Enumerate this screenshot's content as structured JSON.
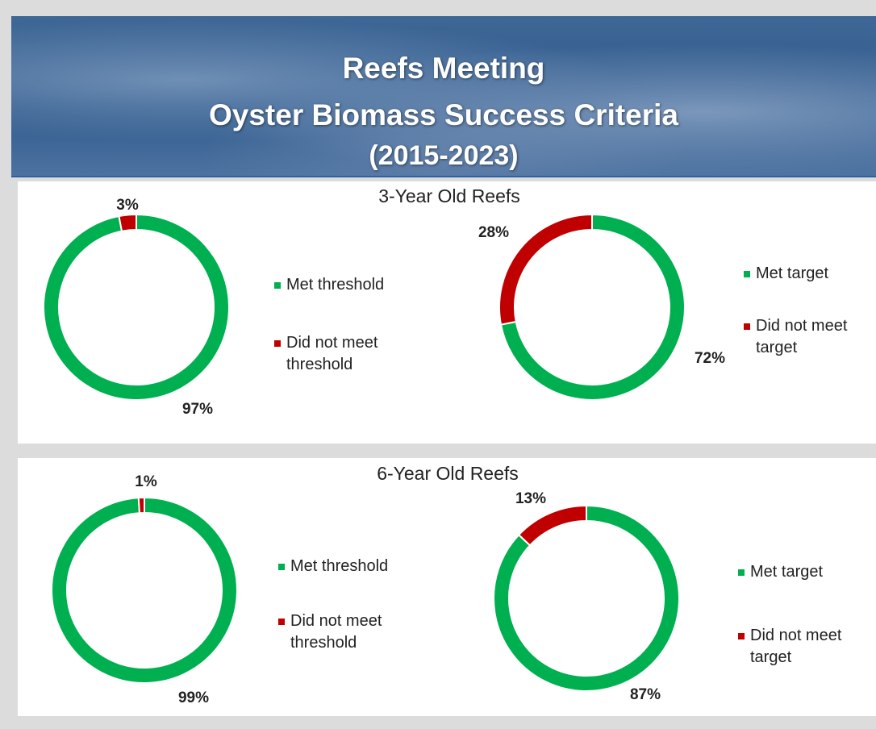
{
  "header": {
    "lines": [
      "Reefs Meeting",
      "Oyster Biomass Success Criteria",
      "(2015-2023)"
    ]
  },
  "panels": [
    {
      "title": "3-Year Old Reefs"
    },
    {
      "title": "6-Year Old Reefs"
    }
  ],
  "chart_data": [
    {
      "type": "donut",
      "categories": [
        "Met threshold",
        "Did not meet threshold"
      ],
      "values": [
        97,
        3
      ],
      "value_labels": [
        "97%",
        "3%"
      ],
      "colors": [
        "#00b050",
        "#c00000"
      ]
    },
    {
      "type": "donut",
      "categories": [
        "Met target",
        "Did not meet target"
      ],
      "values": [
        72,
        28
      ],
      "value_labels": [
        "72%",
        "28%"
      ],
      "colors": [
        "#00b050",
        "#c00000"
      ]
    },
    {
      "type": "donut",
      "categories": [
        "Met threshold",
        "Did not meet threshold"
      ],
      "values": [
        99,
        1
      ],
      "value_labels": [
        "99%",
        "1%"
      ],
      "colors": [
        "#00b050",
        "#c00000"
      ]
    },
    {
      "type": "donut",
      "categories": [
        "Met target",
        "Did not meet target"
      ],
      "values": [
        87,
        13
      ],
      "value_labels": [
        "87%",
        "13%"
      ],
      "colors": [
        "#00b050",
        "#c00000"
      ]
    }
  ]
}
